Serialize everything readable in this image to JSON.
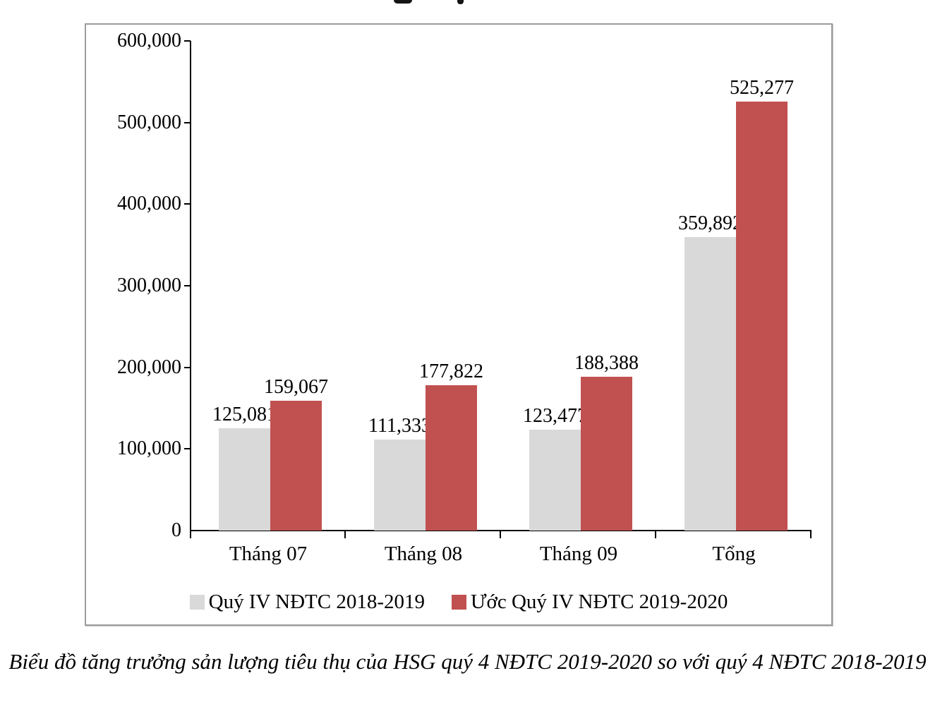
{
  "figure": {
    "caption": "Biểu đồ tăng trưởng sản lượng tiêu thụ của HSG quý 4 NĐTC 2019-2020 so với quý 4 NĐTC 2018-2019"
  },
  "chart_data": {
    "type": "bar",
    "categories": [
      "Tháng 07",
      "Tháng 08",
      "Tháng 09",
      "Tổng"
    ],
    "series": [
      {
        "name": "Quý IV NĐTC 2018-2019",
        "color": "#d9d9d9",
        "values": [
          125081,
          111333,
          123477,
          359892
        ],
        "labels": [
          "125,081",
          "111,333",
          "123,477",
          "359,892"
        ]
      },
      {
        "name": "Ước Quý IV NĐTC 2019-2020",
        "color": "#c05150",
        "values": [
          159067,
          177822,
          188388,
          525277
        ],
        "labels": [
          "159,067",
          "177,822",
          "188,388",
          "525,277"
        ]
      }
    ],
    "ylim": [
      0,
      600000
    ],
    "ytick_interval": 100000,
    "ytick_labels": [
      "0",
      "100,000",
      "200,000",
      "300,000",
      "400,000",
      "500,000",
      "600,000"
    ],
    "grid": false,
    "legend_position": "bottom",
    "axis_color": "#000000",
    "frame_color": "#9c9c9c"
  }
}
